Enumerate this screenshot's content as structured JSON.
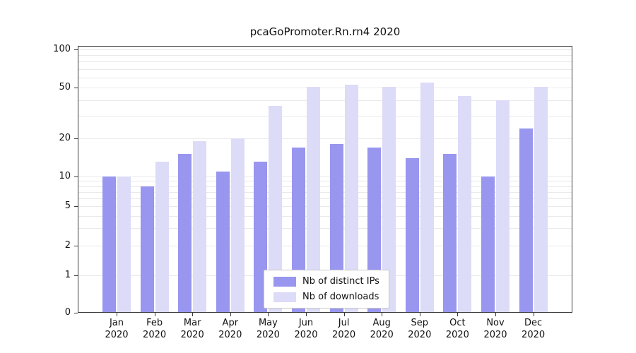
{
  "chart_data": {
    "type": "bar",
    "title": "pcaGoPromoter.Rn.rn4 2020",
    "year": "2020",
    "categories": [
      "Jan",
      "Feb",
      "Mar",
      "Apr",
      "May",
      "Jun",
      "Jul",
      "Aug",
      "Sep",
      "Oct",
      "Nov",
      "Dec"
    ],
    "series": [
      {
        "name": "Nb of distinct IPs",
        "color": "#9896ef",
        "values": [
          10,
          8,
          15,
          11,
          13,
          17,
          18,
          17,
          14,
          15,
          10,
          24
        ]
      },
      {
        "name": "Nb of downloads",
        "color": "#dcdbf8",
        "values": [
          10,
          13,
          19,
          20,
          36,
          51,
          53,
          51,
          55,
          43,
          40,
          51
        ]
      }
    ],
    "xlabel": "",
    "ylabel": "",
    "yticks": [
      0,
      1,
      2,
      5,
      10,
      20,
      50,
      100
    ],
    "grid_values": [
      1,
      2,
      3,
      4,
      5,
      6,
      7,
      8,
      9,
      10,
      20,
      30,
      40,
      50,
      60,
      70,
      80,
      90,
      100
    ],
    "ylim": [
      0,
      100
    ],
    "scale": "symlog",
    "grid": "on",
    "legend_position": "bottom-center-inside"
  }
}
